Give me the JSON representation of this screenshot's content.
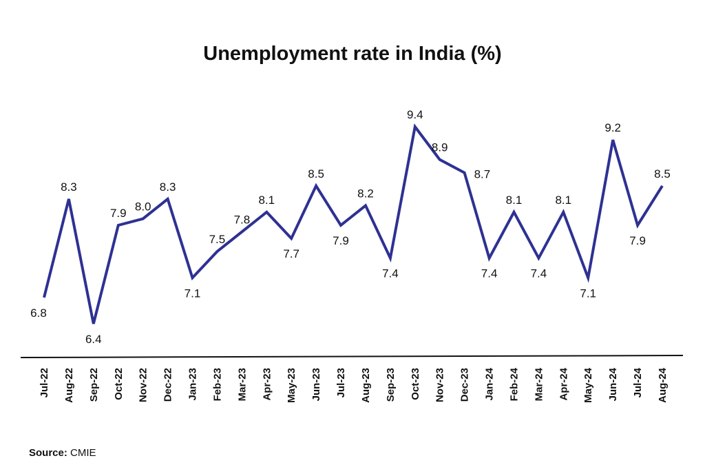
{
  "chart_data": {
    "type": "line",
    "title": "Unemployment rate in India (%)",
    "xlabel": "",
    "ylabel": "",
    "categories": [
      "Jul-22",
      "Aug-22",
      "Sep-22",
      "Oct-22",
      "Nov-22",
      "Dec-22",
      "Jan-23",
      "Feb-23",
      "Mar-23",
      "Apr-23",
      "May-23",
      "Jun-23",
      "Jul-23",
      "Aug-23",
      "Sep-23",
      "Oct-23",
      "Nov-23",
      "Dec-23",
      "Jan-24",
      "Feb-24",
      "Mar-24",
      "Apr-24",
      "May-24",
      "Jun-24",
      "Jul-24",
      "Aug-24"
    ],
    "series": [
      {
        "values": [
          6.8,
          8.3,
          6.4,
          7.9,
          8.0,
          8.3,
          7.1,
          7.5,
          7.8,
          8.1,
          7.7,
          8.5,
          7.9,
          8.2,
          7.4,
          9.4,
          8.9,
          8.7,
          7.4,
          8.1,
          7.4,
          8.1,
          7.1,
          9.2,
          7.9,
          8.5
        ],
        "labels": [
          "6.8",
          "8.3",
          "6.4",
          "7.9",
          "8.0",
          "8.3",
          "7.1",
          "7.5",
          "7.8",
          "8.1",
          "7.7",
          "8.5",
          "7.9",
          "8.2",
          "7.4",
          "9.4",
          "8.9",
          "8.7",
          "7.4",
          "8.1",
          "7.4",
          "8.1",
          "7.1",
          "9.2",
          "7.9",
          "8.5"
        ],
        "label_position": [
          "below",
          "above",
          "below",
          "above",
          "above",
          "above",
          "below",
          "above",
          "above",
          "above",
          "below",
          "above",
          "below",
          "above",
          "below",
          "above",
          "above",
          "right",
          "below",
          "above",
          "below",
          "above",
          "below",
          "above",
          "below",
          "above"
        ]
      }
    ],
    "line_color": "#2E3192",
    "grid": false,
    "legend": "none"
  },
  "footer": {
    "source_label": "Source:",
    "source_value": "CMIE"
  }
}
